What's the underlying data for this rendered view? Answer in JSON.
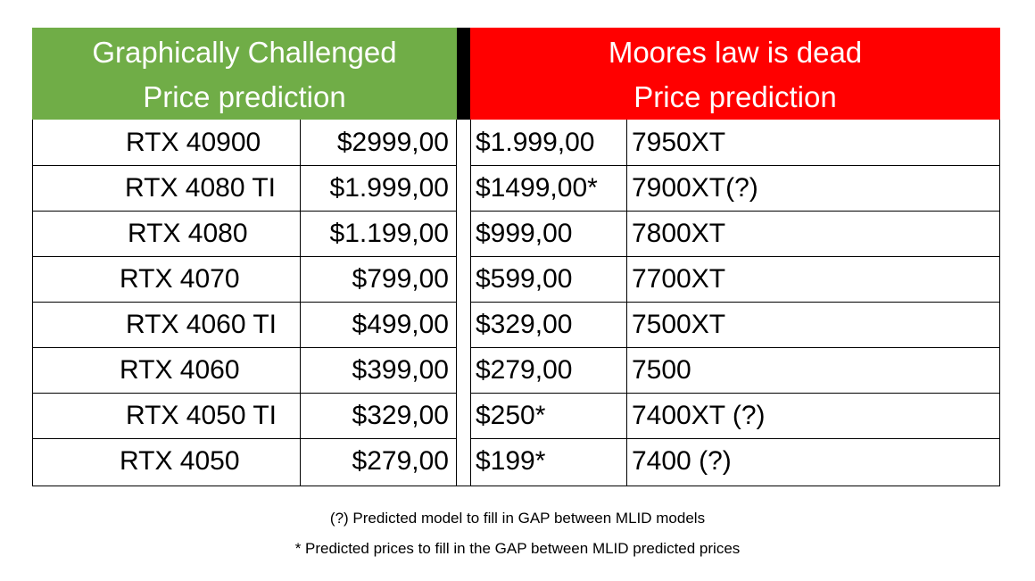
{
  "header": {
    "left": {
      "line1": "Graphically Challenged",
      "line2": "Price prediction",
      "color": "#70ad47"
    },
    "right": {
      "line1": "Moores law is dead",
      "line2": "Price prediction",
      "color": "#ff0000"
    },
    "divider_color": "#000000"
  },
  "rows": [
    {
      "nvidia_model": "RTX 40900",
      "gc_price": "$2999,00",
      "mlid_price": "$1.999,00",
      "amd_model": "7950XT"
    },
    {
      "nvidia_model": "RTX 4080 TI",
      "gc_price": "$1.999,00",
      "mlid_price": "$1499,00*",
      "amd_model": "7900XT(?)"
    },
    {
      "nvidia_model": "RTX 4080",
      "gc_price": "$1.199,00",
      "mlid_price": "$999,00",
      "amd_model": "7800XT"
    },
    {
      "nvidia_model": "RTX 4070",
      "gc_price": "$799,00",
      "mlid_price": "$599,00",
      "amd_model": "7700XT"
    },
    {
      "nvidia_model": "RTX 4060 TI",
      "gc_price": "$499,00",
      "mlid_price": "$329,00",
      "amd_model": "7500XT"
    },
    {
      "nvidia_model": "RTX 4060",
      "gc_price": "$399,00",
      "mlid_price": "$279,00",
      "amd_model": "7500"
    },
    {
      "nvidia_model": "RTX 4050 TI",
      "gc_price": "$329,00",
      "mlid_price": "$250*",
      "amd_model": "7400XT (?)"
    },
    {
      "nvidia_model": "RTX 4050",
      "gc_price": "$279,00",
      "mlid_price": "$199*",
      "amd_model": "7400 (?)"
    }
  ],
  "notes": {
    "model_note": "(?) Predicted model to fill in GAP between MLID models",
    "price_note": "* Predicted prices to fill in the GAP between MLID predicted prices"
  }
}
